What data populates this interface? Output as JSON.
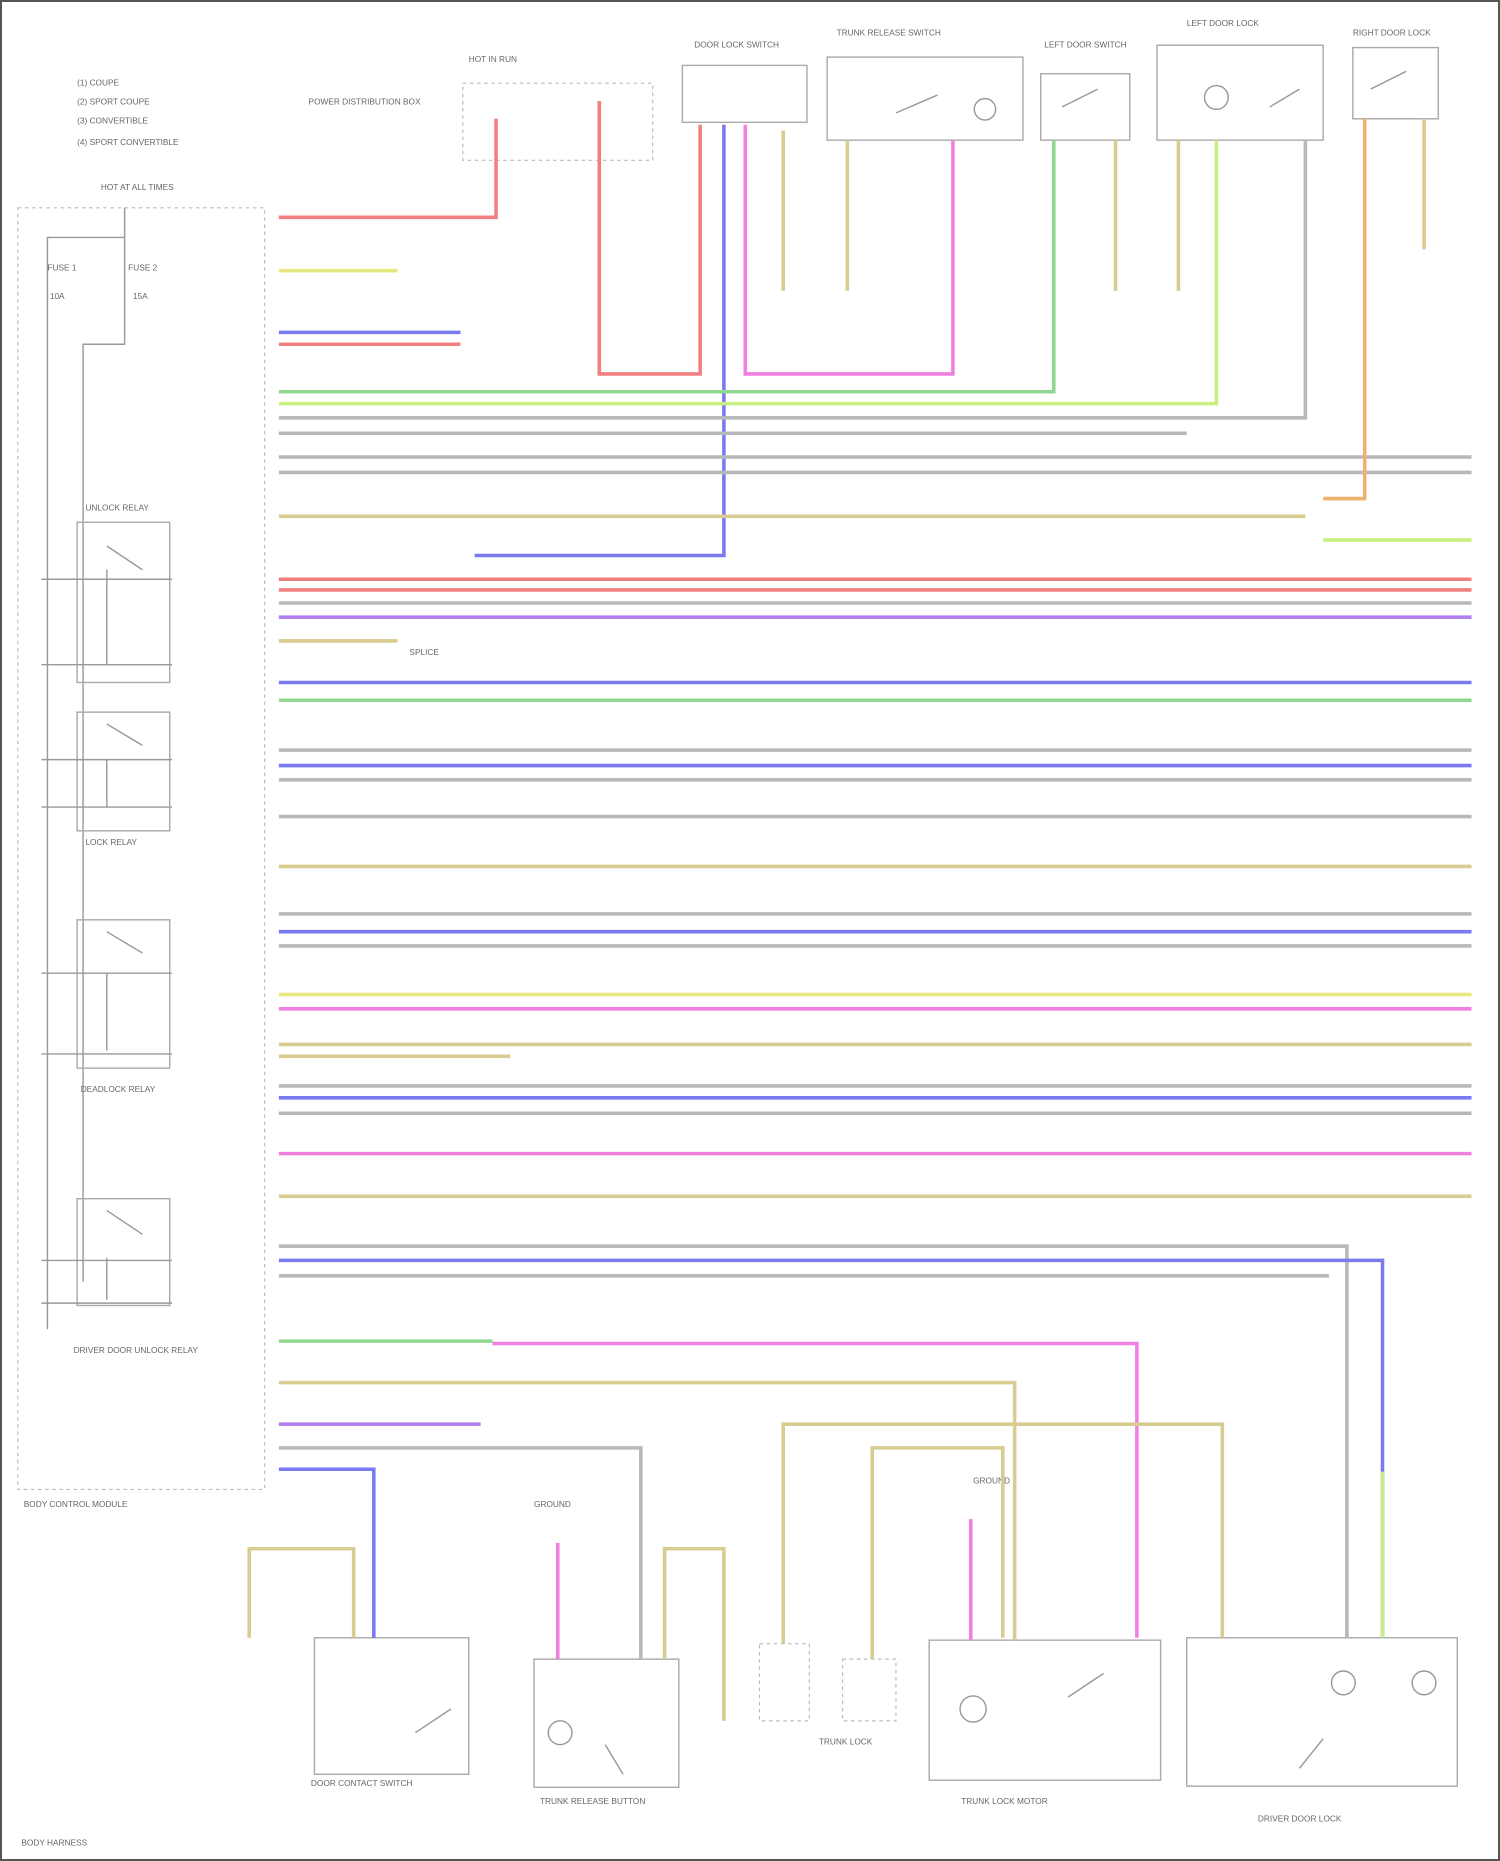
{
  "legend": [
    "(1) COUPE",
    "(2) SPORT COUPE",
    "(3) CONVERTIBLE",
    "(4) SPORT CONVERTIBLE"
  ],
  "components": {
    "hot_at_all_times_left": "HOT AT ALL TIMES",
    "hot_at_all_times_top": "HOT AT ALL TIMES",
    "hot_in_run": "HOT IN RUN",
    "power_distribution": "POWER DISTRIBUTION BOX",
    "fuse_1": "FUSE 1",
    "fuse_2": "FUSE 2",
    "fuse_a": "10A",
    "fuse_b": "15A",
    "module": "BODY CONTROL MODULE",
    "relay_1": "UNLOCK RELAY",
    "relay_2": "LOCK RELAY",
    "relay_3": "DEADLOCK RELAY",
    "relay_4": "DRIVER DOOR UNLOCK RELAY",
    "top_switch_1": "DOOR LOCK SWITCH",
    "top_switch_2": "TRUNK RELEASE SWITCH",
    "top_switch_3": "LEFT DOOR SWITCH",
    "top_switch_4": "LEFT DOOR LOCK",
    "top_switch_5": "RIGHT DOOR LOCK",
    "bottom_1": "DOOR CONTACT SWITCH",
    "bottom_2": "TRUNK RELEASE BUTTON",
    "bottom_3": "TRUNK LOCK",
    "bottom_4": "TRUNK LOCK MOTOR",
    "bottom_5": "DRIVER DOOR LOCK",
    "ground_1": "GROUND",
    "ground_2": "GROUND",
    "splice": "SPLICE",
    "footer": "BODY HARNESS"
  },
  "wire_colors": {
    "red": "#f08080",
    "yellow": "#e8e880",
    "blue": "#7a7af0",
    "green": "#90d890",
    "gray": "#b8b8b8",
    "tan": "#d8cc90",
    "pink": "#f080e0",
    "orange": "#f0b070",
    "ltgreen": "#c8f080",
    "purple": "#b080f0"
  }
}
